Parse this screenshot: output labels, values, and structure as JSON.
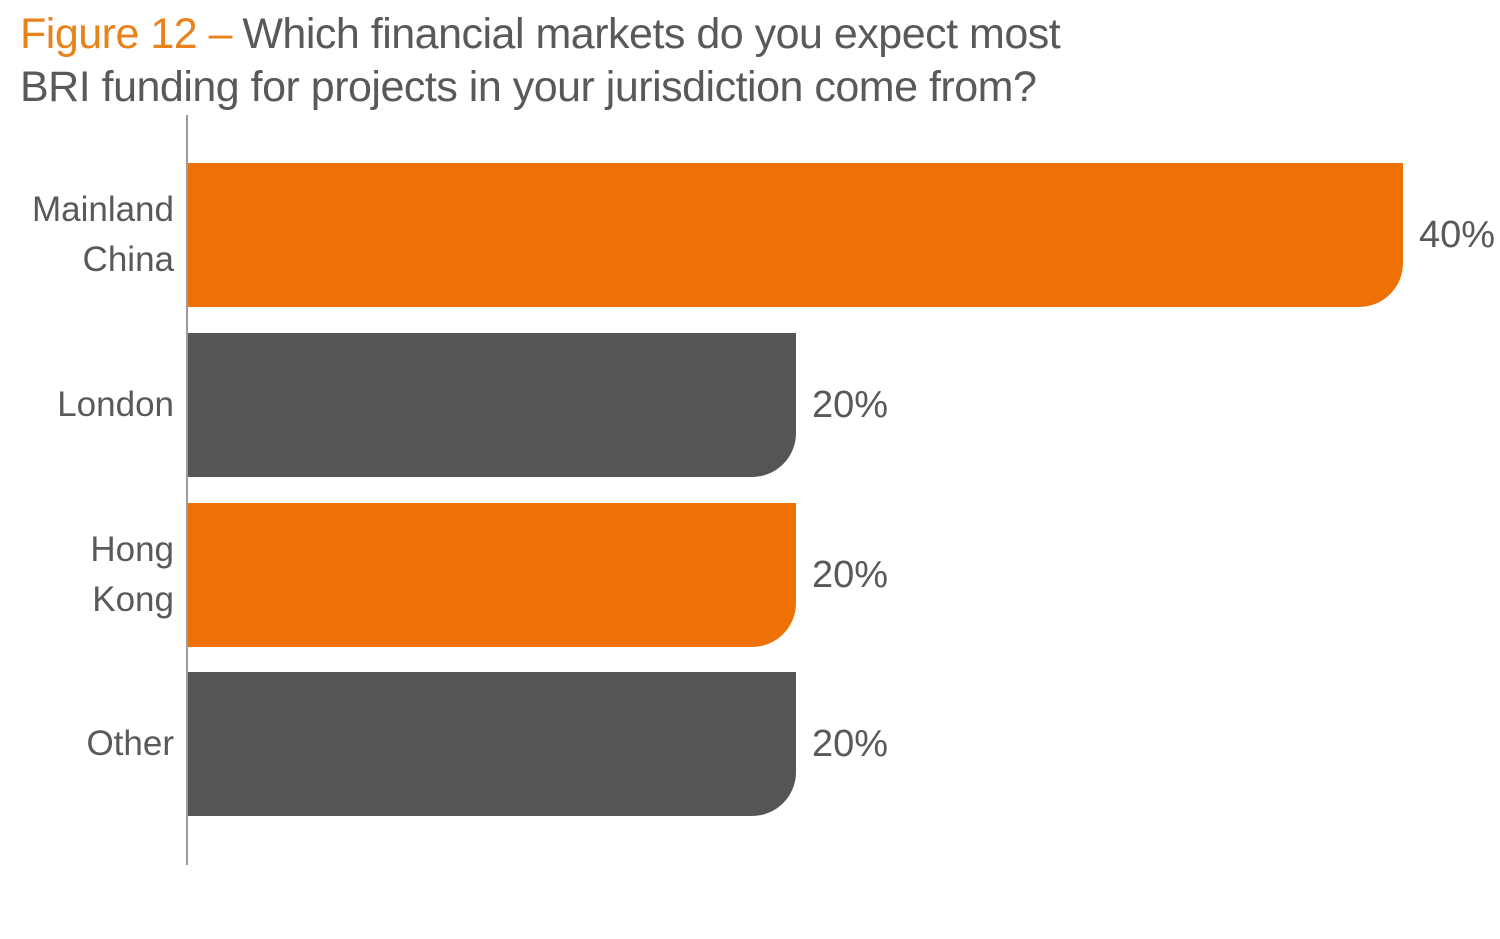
{
  "title": {
    "figure_label": "Figure 12 –",
    "line1": "Which financial markets do you expect most",
    "line2": "BRI funding for projects in your jurisdiction come from?"
  },
  "colors": {
    "title_accent_orange": "#E8821B",
    "bar_orange": "#ED7104",
    "bar_gray": "#575457",
    "text_gray": "#58595B",
    "axis_gray": "#9B9B9D"
  },
  "chart_data": {
    "type": "bar",
    "orientation": "horizontal",
    "title": "Figure 12 – Which financial markets do you expect most BRI funding for projects in your jurisdiction come from?",
    "categories": [
      "Mainland China",
      "London",
      "Hong Kong",
      "Other"
    ],
    "values": [
      40,
      20,
      20,
      20
    ],
    "value_labels": [
      "40%",
      "20%",
      "20%",
      "20%"
    ],
    "unit": "percent",
    "xlim": [
      0,
      42
    ],
    "bar_colors": [
      "#ED7104",
      "#575457",
      "#ED7104",
      "#575457"
    ],
    "grid": false,
    "legend": false,
    "value_label_position": "right-of-bar",
    "bar_corner": "rounded-bottom-right"
  }
}
